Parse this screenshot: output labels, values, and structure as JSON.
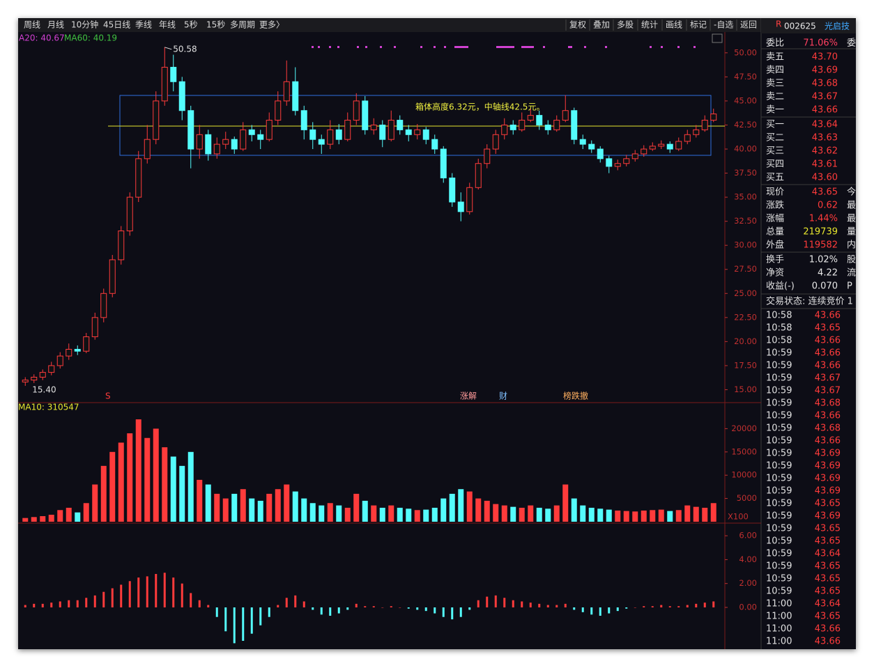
{
  "toolbar": {
    "left": [
      "周线",
      "月线",
      "10分钟",
      "45日线",
      "季线",
      "年线",
      "5秒",
      "15秒",
      "多周期",
      "更多〉"
    ],
    "right": [
      "复权",
      "叠加",
      "多股",
      "统计",
      "画线",
      "标记",
      "-自选",
      "返回"
    ]
  },
  "legend": {
    "price": [
      "A20: 40.67",
      "MA60: 40.19"
    ],
    "volume": "MA10: 310547"
  },
  "chart_data": {
    "type": "candlestick",
    "annotation": "箱体高度6.32元，中轴线42.5元。",
    "high_label": "50.58",
    "low_label": "15.40",
    "ylim": [
      14.6,
      51.0
    ],
    "yticks": [
      {
        "value": 50,
        "label": "50.00"
      },
      {
        "value": 47.5,
        "label": "47.50"
      },
      {
        "value": 45,
        "label": "45.00"
      },
      {
        "value": 42.5,
        "label": "42.50"
      },
      {
        "value": 40,
        "label": "40.00"
      },
      {
        "value": 37.5,
        "label": "37.50"
      },
      {
        "value": 35,
        "label": "35.00"
      },
      {
        "value": 32.5,
        "label": "32.50"
      },
      {
        "value": 30,
        "label": "30.00"
      },
      {
        "value": 27.5,
        "label": "27.50"
      },
      {
        "value": 25,
        "label": "25.00"
      },
      {
        "value": 22.5,
        "label": "22.50"
      },
      {
        "value": 20,
        "label": "20.00"
      },
      {
        "value": 17.5,
        "label": "17.50"
      },
      {
        "value": 15,
        "label": "15.00"
      }
    ],
    "candles": [
      [
        15.8,
        16.3,
        15.4,
        16.0
      ],
      [
        16.0,
        16.6,
        15.7,
        16.3
      ],
      [
        16.3,
        17.1,
        16.0,
        16.8
      ],
      [
        16.8,
        17.9,
        16.5,
        17.5
      ],
      [
        17.5,
        18.9,
        17.2,
        18.5
      ],
      [
        18.5,
        19.8,
        18.1,
        19.2
      ],
      [
        19.2,
        19.6,
        18.6,
        19.0
      ],
      [
        19.0,
        20.9,
        18.8,
        20.5
      ],
      [
        20.5,
        23.0,
        20.2,
        22.5
      ],
      [
        22.5,
        25.5,
        22.0,
        25.0
      ],
      [
        25.0,
        29.0,
        24.6,
        28.5
      ],
      [
        28.5,
        32.0,
        28.0,
        31.5
      ],
      [
        31.5,
        35.5,
        31.0,
        35.0
      ],
      [
        35.0,
        39.8,
        34.5,
        39.0
      ],
      [
        39.0,
        42.5,
        38.5,
        41.0
      ],
      [
        41.0,
        46.0,
        40.5,
        45.0
      ],
      [
        45.0,
        50.58,
        44.5,
        48.5
      ],
      [
        48.5,
        49.8,
        46.0,
        47.0
      ],
      [
        47.0,
        47.5,
        43.0,
        44.0
      ],
      [
        44.0,
        44.5,
        38.0,
        40.0
      ],
      [
        40.0,
        42.5,
        39.0,
        41.5
      ],
      [
        41.5,
        42.0,
        38.8,
        39.5
      ],
      [
        39.5,
        41.2,
        39.0,
        40.5
      ],
      [
        40.5,
        41.8,
        40.0,
        41.0
      ],
      [
        41.0,
        41.3,
        39.5,
        40.0
      ],
      [
        40.0,
        42.8,
        39.8,
        42.0
      ],
      [
        42.0,
        42.5,
        40.8,
        41.5
      ],
      [
        41.5,
        42.0,
        40.0,
        41.0
      ],
      [
        41.0,
        43.8,
        40.8,
        43.0
      ],
      [
        43.0,
        46.0,
        42.5,
        45.0
      ],
      [
        45.0,
        49.2,
        44.5,
        47.0
      ],
      [
        47.0,
        48.5,
        43.5,
        44.0
      ],
      [
        44.0,
        44.5,
        41.0,
        42.0
      ],
      [
        42.0,
        42.8,
        40.0,
        41.0
      ],
      [
        41.0,
        41.5,
        39.5,
        40.5
      ],
      [
        40.5,
        43.0,
        40.0,
        42.0
      ],
      [
        42.0,
        42.6,
        40.5,
        41.0
      ],
      [
        41.0,
        43.8,
        40.8,
        43.0
      ],
      [
        43.0,
        45.8,
        42.5,
        45.0
      ],
      [
        45.0,
        45.5,
        41.5,
        42.0
      ],
      [
        42.0,
        43.2,
        41.5,
        42.5
      ],
      [
        42.5,
        43.0,
        40.2,
        41.0
      ],
      [
        41.0,
        44.0,
        40.8,
        43.0
      ],
      [
        43.0,
        43.5,
        41.5,
        42.0
      ],
      [
        42.0,
        42.5,
        40.8,
        41.5
      ],
      [
        41.5,
        42.6,
        41.0,
        42.0
      ],
      [
        42.0,
        42.3,
        40.5,
        41.0
      ],
      [
        41.0,
        41.5,
        39.5,
        40.0
      ],
      [
        40.0,
        40.3,
        36.5,
        37.0
      ],
      [
        37.0,
        37.5,
        34.0,
        34.5
      ],
      [
        34.5,
        35.5,
        32.5,
        33.5
      ],
      [
        33.5,
        36.5,
        33.2,
        36.0
      ],
      [
        36.0,
        39.0,
        35.8,
        38.5
      ],
      [
        38.5,
        40.5,
        38.0,
        40.0
      ],
      [
        40.0,
        42.0,
        39.5,
        41.5
      ],
      [
        41.5,
        43.2,
        41.0,
        42.5
      ],
      [
        42.5,
        43.0,
        41.5,
        42.0
      ],
      [
        42.0,
        43.8,
        41.8,
        43.0
      ],
      [
        43.0,
        44.2,
        42.8,
        43.5
      ],
      [
        43.5,
        44.0,
        42.0,
        42.5
      ],
      [
        42.5,
        43.0,
        41.5,
        42.0
      ],
      [
        42.0,
        43.5,
        41.8,
        43.0
      ],
      [
        43.0,
        45.6,
        42.8,
        44.0
      ],
      [
        44.0,
        44.3,
        40.5,
        41.0
      ],
      [
        41.0,
        41.5,
        40.0,
        40.5
      ],
      [
        40.5,
        40.9,
        39.6,
        40.0
      ],
      [
        40.0,
        40.3,
        38.6,
        39.0
      ],
      [
        39.0,
        39.3,
        37.5,
        38.2
      ],
      [
        38.2,
        38.9,
        37.8,
        38.5
      ],
      [
        38.5,
        39.4,
        38.2,
        39.0
      ],
      [
        39.0,
        39.9,
        38.7,
        39.5
      ],
      [
        39.5,
        40.4,
        39.2,
        40.0
      ],
      [
        40.0,
        40.7,
        39.8,
        40.3
      ],
      [
        40.3,
        40.9,
        40.0,
        40.5
      ],
      [
        40.5,
        40.8,
        39.6,
        40.0
      ],
      [
        40.0,
        41.2,
        39.8,
        40.8
      ],
      [
        40.8,
        42.0,
        40.5,
        41.5
      ],
      [
        41.5,
        42.5,
        41.2,
        42.0
      ],
      [
        42.0,
        43.5,
        41.8,
        43.0
      ],
      [
        43.0,
        44.2,
        42.8,
        43.65
      ]
    ],
    "events": [
      "S",
      "涨解",
      "财",
      "榜跌撤"
    ]
  },
  "volume": {
    "unit": "X100",
    "ylim": [
      0,
      25000
    ],
    "yticks": [
      20000,
      15000,
      10000,
      5000
    ],
    "values": [
      800,
      1000,
      1200,
      1500,
      2500,
      3000,
      2000,
      4000,
      8000,
      12000,
      15000,
      17000,
      19000,
      22000,
      18000,
      20000,
      16000,
      14000,
      12000,
      15000,
      9000,
      8000,
      6000,
      5000,
      6000,
      7000,
      5000,
      4500,
      6000,
      7000,
      8000,
      6500,
      5000,
      4000,
      3500,
      4000,
      3500,
      3000,
      6000,
      4500,
      3500,
      3000,
      3500,
      3000,
      2800,
      2500,
      2600,
      3000,
      5000,
      6000,
      7000,
      6500,
      5000,
      4500,
      3800,
      3500,
      3200,
      3000,
      3500,
      3000,
      2800,
      3500,
      8000,
      5000,
      3500,
      3000,
      2800,
      2600,
      2400,
      2300,
      2200,
      2400,
      2500,
      2600,
      2300,
      2500,
      3500,
      3200,
      3000,
      4000
    ]
  },
  "macd": {
    "ylim": [
      -3.5,
      7.0
    ],
    "yticks": [
      {
        "value": 6,
        "label": "6.00"
      },
      {
        "value": 4,
        "label": "4.00"
      },
      {
        "value": 2,
        "label": "2.00"
      },
      {
        "value": 0,
        "label": "0.00"
      }
    ],
    "values": [
      0.2,
      0.3,
      0.3,
      0.4,
      0.5,
      0.6,
      0.6,
      0.8,
      1.0,
      1.3,
      1.6,
      1.9,
      2.2,
      2.5,
      2.6,
      2.8,
      2.9,
      2.5,
      2.0,
      1.2,
      0.6,
      0.2,
      -0.8,
      -2.0,
      -3.0,
      -2.8,
      -2.2,
      -1.5,
      -0.8,
      0.2,
      0.8,
      1.0,
      0.5,
      -0.2,
      -0.6,
      -0.7,
      -0.5,
      -0.2,
      0.3,
      0.1,
      0.1,
      0.0,
      0.1,
      0.0,
      -0.1,
      -0.2,
      -0.3,
      -0.5,
      -0.8,
      -1.0,
      -0.8,
      -0.2,
      0.6,
      0.9,
      1.0,
      0.8,
      0.6,
      0.5,
      0.4,
      0.3,
      0.2,
      0.2,
      0.3,
      -0.2,
      -0.4,
      -0.6,
      -0.7,
      -0.5,
      -0.3,
      -0.1,
      0.0,
      0.1,
      0.1,
      0.2,
      0.1,
      0.1,
      0.2,
      0.3,
      0.4,
      0.5
    ]
  },
  "quote": {
    "flag": "R",
    "code": "002625",
    "name": "光启技",
    "rows": [
      {
        "label": "委比",
        "value": "71.06%",
        "next": "委"
      },
      {
        "label": "卖五",
        "value": "43.70"
      },
      {
        "label": "卖四",
        "value": "43.69"
      },
      {
        "label": "卖三",
        "value": "43.68"
      },
      {
        "label": "卖二",
        "value": "43.67"
      },
      {
        "label": "卖一",
        "value": "43.66"
      },
      {
        "label": "买一",
        "value": "43.64"
      },
      {
        "label": "买二",
        "value": "43.63"
      },
      {
        "label": "买三",
        "value": "43.62"
      },
      {
        "label": "买四",
        "value": "43.61"
      },
      {
        "label": "买五",
        "value": "43.60"
      },
      {
        "label": "现价",
        "value": "43.65",
        "next": "今"
      },
      {
        "label": "涨跌",
        "value": "0.62",
        "next": "最"
      },
      {
        "label": "涨幅",
        "value": "1.44%",
        "next": "最"
      },
      {
        "label": "总量",
        "value": "219739",
        "next": "量"
      },
      {
        "label": "外盘",
        "value": "119582",
        "next": "内"
      },
      {
        "label": "换手",
        "value": "1.02%",
        "next": "股"
      },
      {
        "label": "净资",
        "value": "4.22",
        "next": "流"
      },
      {
        "label": "收益(-)",
        "value": "0.070",
        "next": "P"
      }
    ],
    "status": "交易状态: 连续竞价 1"
  },
  "trades": [
    [
      "10:58",
      "43.66"
    ],
    [
      "10:58",
      "43.65"
    ],
    [
      "10:58",
      "43.66"
    ],
    [
      "10:59",
      "43.66"
    ],
    [
      "10:59",
      "43.66"
    ],
    [
      "10:59",
      "43.67"
    ],
    [
      "10:59",
      "43.67"
    ],
    [
      "10:59",
      "43.68"
    ],
    [
      "10:59",
      "43.66"
    ],
    [
      "10:59",
      "43.68"
    ],
    [
      "10:59",
      "43.66"
    ],
    [
      "10:59",
      "43.69"
    ],
    [
      "10:59",
      "43.69"
    ],
    [
      "10:59",
      "43.69"
    ],
    [
      "10:59",
      "43.69"
    ],
    [
      "10:59",
      "43.65"
    ],
    [
      "10:59",
      "43.69"
    ],
    [
      "10:59",
      "43.65"
    ],
    [
      "10:59",
      "43.65"
    ],
    [
      "10:59",
      "43.64"
    ],
    [
      "10:59",
      "43.65"
    ],
    [
      "10:59",
      "43.65"
    ],
    [
      "10:59",
      "43.65"
    ],
    [
      "11:00",
      "43.64"
    ],
    [
      "11:00",
      "43.65"
    ],
    [
      "11:00",
      "43.66"
    ],
    [
      "11:00",
      "43.66"
    ]
  ]
}
